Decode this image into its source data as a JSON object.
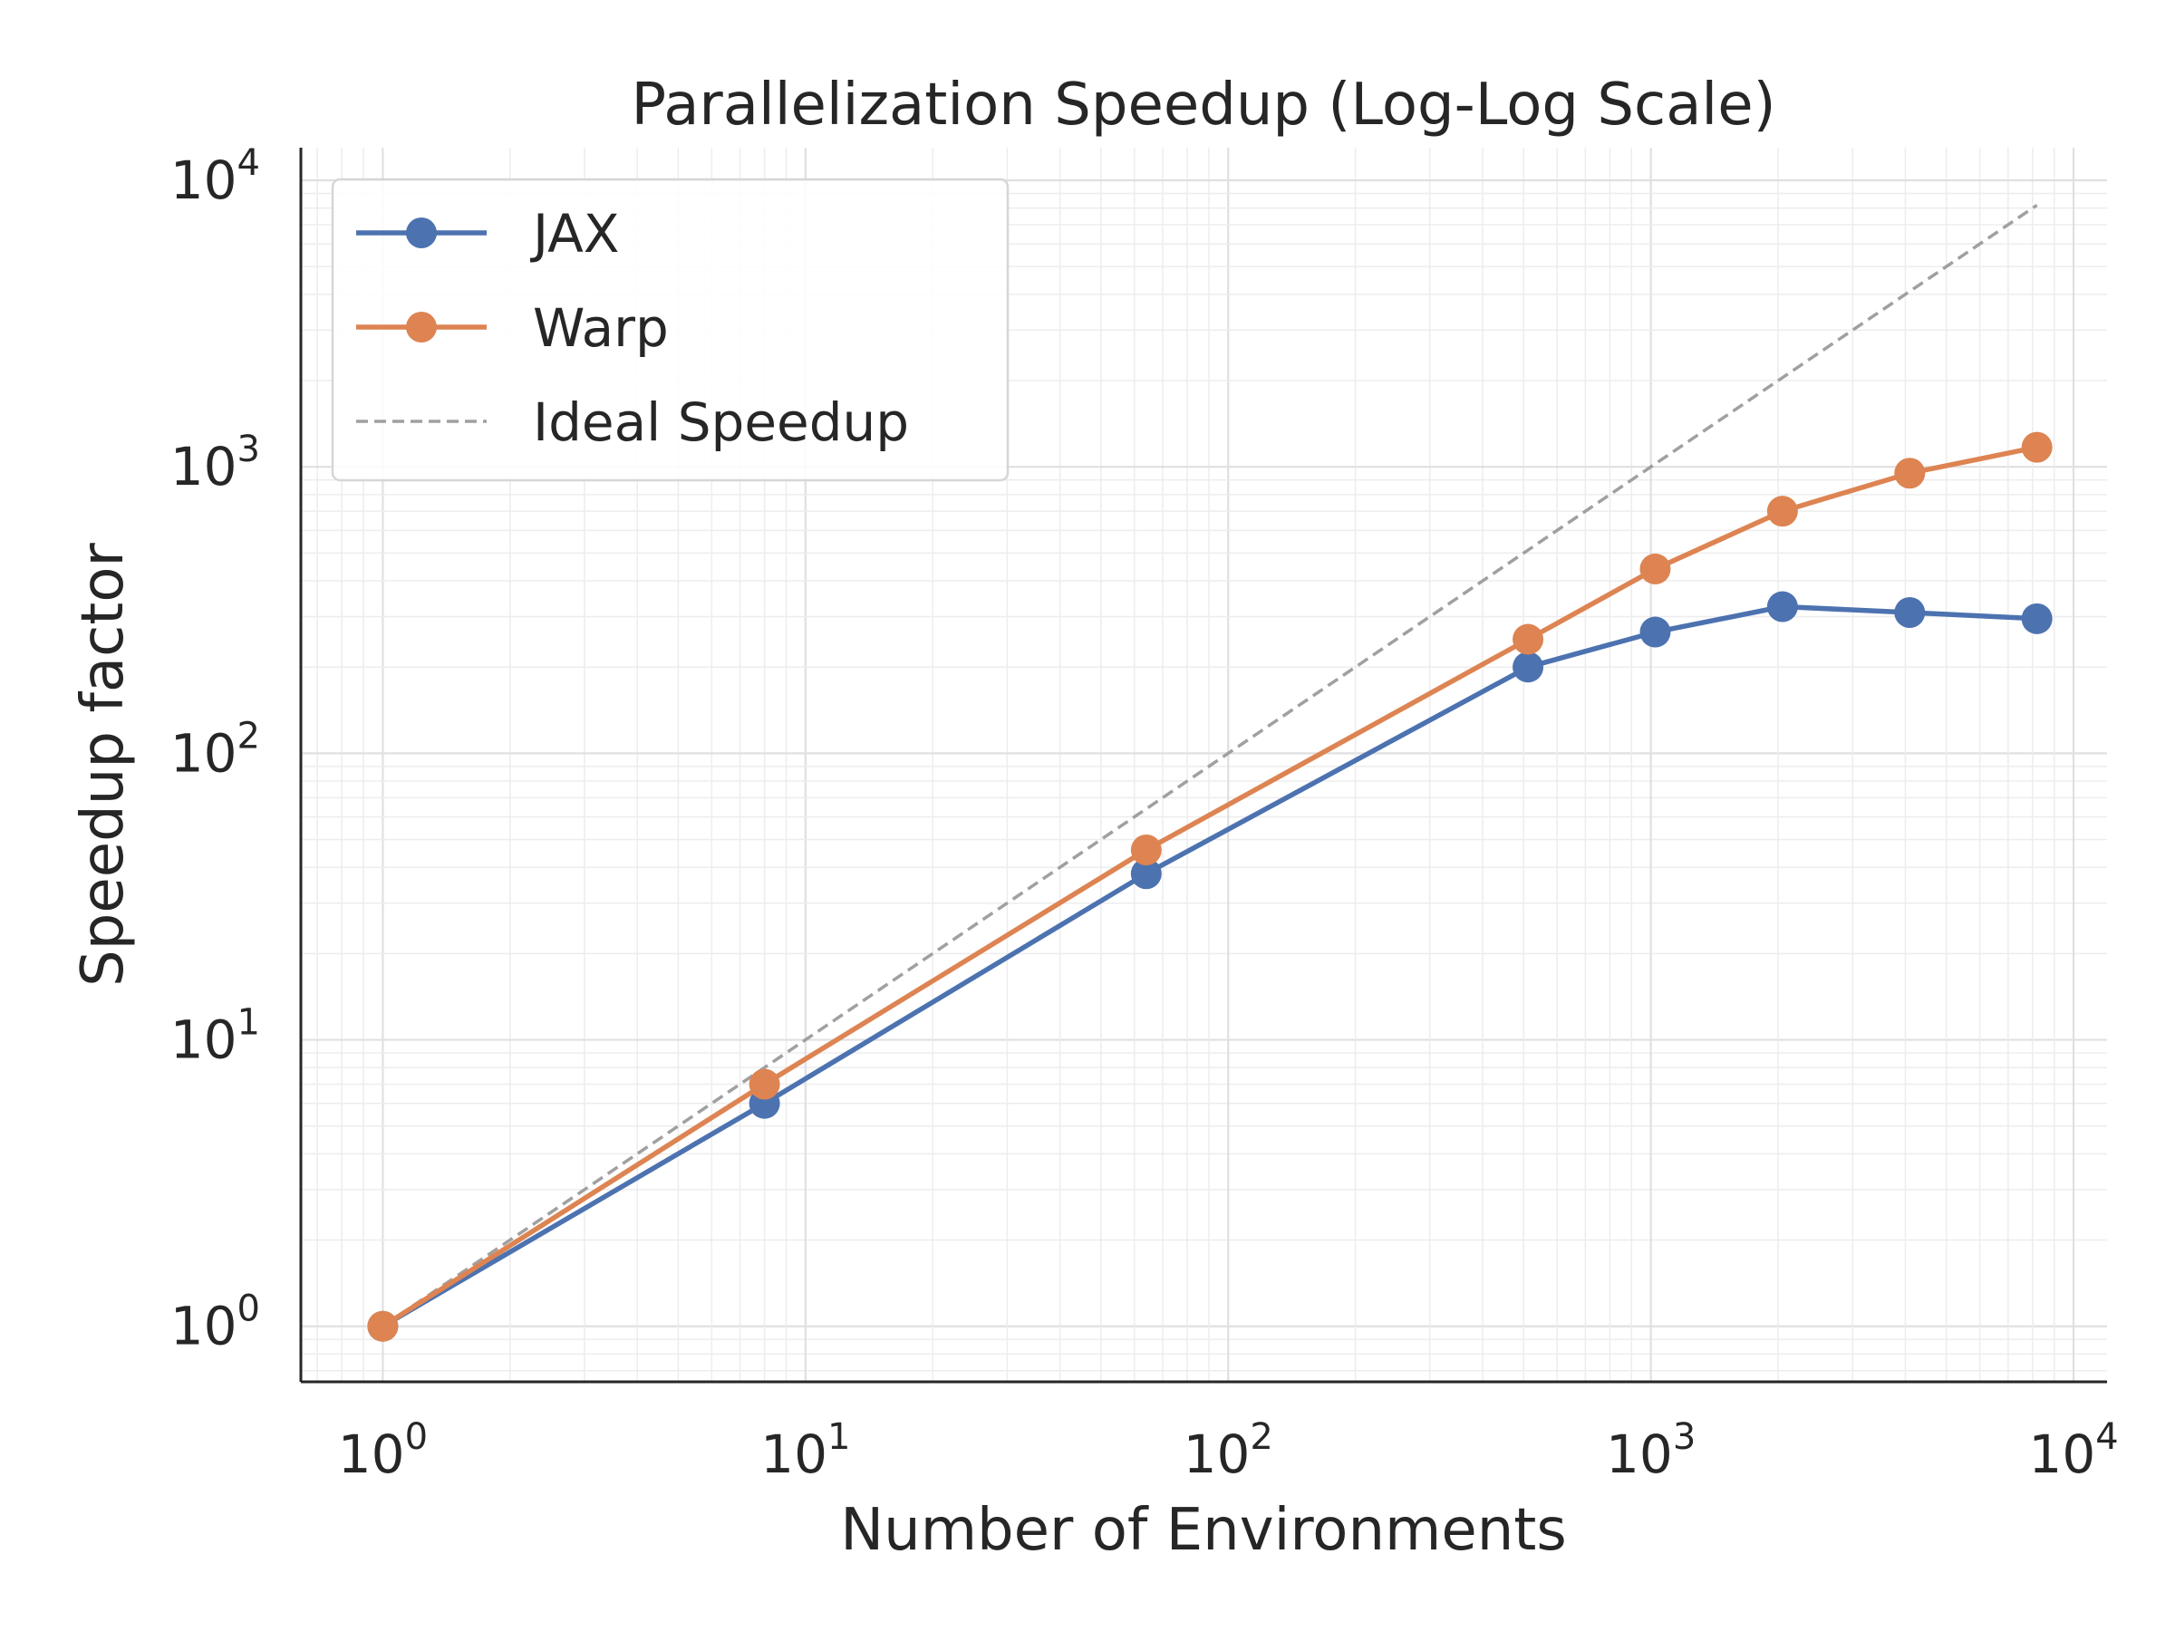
{
  "chart_data": {
    "type": "line",
    "title": "Parallelization Speedup (Log-Log Scale)",
    "xlabel": "Number of Environments",
    "ylabel": "Speedup factor",
    "xscale": "log",
    "yscale": "log",
    "xlim": [
      0.64,
      12000
    ],
    "ylim": [
      0.64,
      13000
    ],
    "grid": true,
    "legend_position": "top-left",
    "x_ticks": [
      {
        "value": 1,
        "base": "10",
        "exp": "0"
      },
      {
        "value": 10,
        "base": "10",
        "exp": "1"
      },
      {
        "value": 100,
        "base": "10",
        "exp": "2"
      },
      {
        "value": 1000,
        "base": "10",
        "exp": "3"
      },
      {
        "value": 10000,
        "base": "10",
        "exp": "4"
      }
    ],
    "y_ticks": [
      {
        "value": 1,
        "base": "10",
        "exp": "0"
      },
      {
        "value": 10,
        "base": "10",
        "exp": "1"
      },
      {
        "value": 100,
        "base": "10",
        "exp": "2"
      },
      {
        "value": 1000,
        "base": "10",
        "exp": "3"
      },
      {
        "value": 10000,
        "base": "10",
        "exp": "4"
      }
    ],
    "series": [
      {
        "name": "JAX",
        "color": "#4C72B0",
        "style": "solid",
        "marker": true,
        "x": [
          1,
          8,
          64,
          512,
          1024,
          2048,
          4096,
          8192
        ],
        "values": [
          1,
          6,
          38,
          200,
          265,
          325,
          310,
          295
        ]
      },
      {
        "name": "Warp",
        "color": "#DD8452",
        "style": "solid",
        "marker": true,
        "x": [
          1,
          8,
          64,
          512,
          1024,
          2048,
          4096,
          8192
        ],
        "values": [
          1,
          7,
          46,
          250,
          440,
          700,
          950,
          1170
        ]
      },
      {
        "name": "Ideal Speedup",
        "color": "#A0A0A0",
        "style": "dashed",
        "marker": false,
        "x": [
          1,
          8192
        ],
        "values": [
          1,
          8192
        ]
      }
    ]
  }
}
